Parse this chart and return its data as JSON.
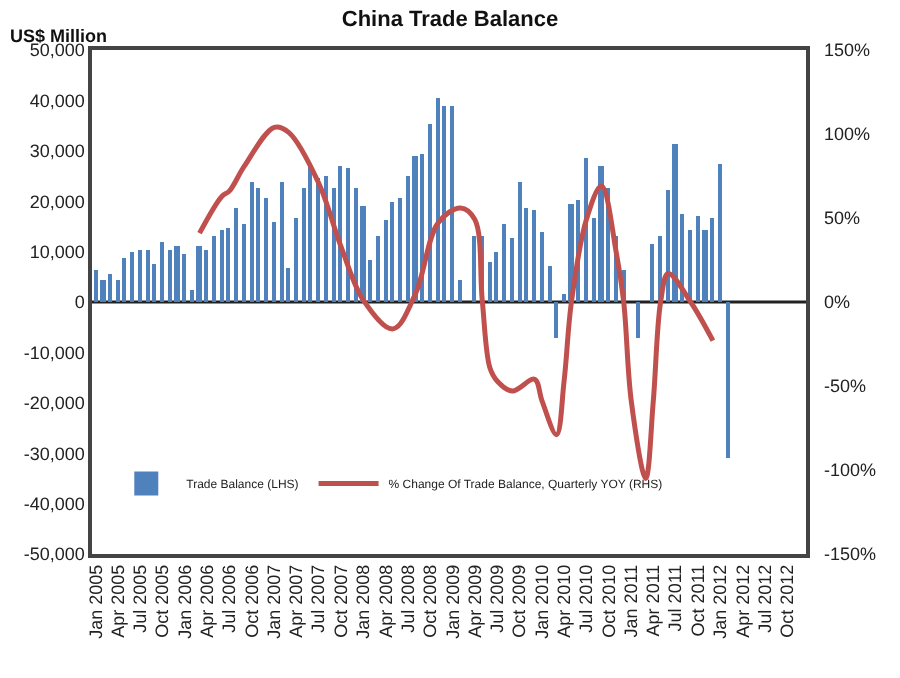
{
  "chart_data": {
    "type": "bar",
    "title": "China Trade Balance",
    "ylabel": "US$ Million",
    "xlim": [
      "2004-12-16",
      "2012-12-16"
    ],
    "xticks": [
      {
        "value": "2005-01",
        "label": "Jan 2005"
      },
      {
        "value": "2005-04",
        "label": "Apr 2005"
      },
      {
        "value": "2005-07",
        "label": "Jul 2005"
      },
      {
        "value": "2005-10",
        "label": "Oct 2005"
      },
      {
        "value": "2006-01",
        "label": "Jan 2006"
      },
      {
        "value": "2006-04",
        "label": "Apr 2006"
      },
      {
        "value": "2006-07",
        "label": "Jul 2006"
      },
      {
        "value": "2006-10",
        "label": "Oct 2006"
      },
      {
        "value": "2007-01",
        "label": "Jan 2007"
      },
      {
        "value": "2007-04",
        "label": "Apr 2007"
      },
      {
        "value": "2007-07",
        "label": "Jul 2007"
      },
      {
        "value": "2007-10",
        "label": "Oct 2007"
      },
      {
        "value": "2008-01",
        "label": "Jan 2008"
      },
      {
        "value": "2008-04",
        "label": "Apr 2008"
      },
      {
        "value": "2008-07",
        "label": "Jul 2008"
      },
      {
        "value": "2008-10",
        "label": "Oct 2008"
      },
      {
        "value": "2009-01",
        "label": "Jan 2009"
      },
      {
        "value": "2009-04",
        "label": "Apr 2009"
      },
      {
        "value": "2009-07",
        "label": "Jul 2009"
      },
      {
        "value": "2009-10",
        "label": "Oct 2009"
      },
      {
        "value": "2010-01",
        "label": "Jan 2010"
      },
      {
        "value": "2010-04",
        "label": "Apr 2010"
      },
      {
        "value": "2010-07",
        "label": "Jul 2010"
      },
      {
        "value": "2010-10",
        "label": "Oct 2010"
      },
      {
        "value": "2011-01",
        "label": "Jan 2011"
      },
      {
        "value": "2011-04",
        "label": "Apr 2011"
      },
      {
        "value": "2011-07",
        "label": "Jul 2011"
      },
      {
        "value": "2011-10",
        "label": "Oct 2011"
      },
      {
        "value": "2012-01",
        "label": "Jan 2012"
      },
      {
        "value": "2012-04",
        "label": "Apr 2012"
      },
      {
        "value": "2012-07",
        "label": "Jul 2012"
      },
      {
        "value": "2012-10",
        "label": "Oct 2012"
      }
    ],
    "ylim": [
      -50000,
      50000
    ],
    "yticks": [
      {
        "value": -50000,
        "label": "-50,000"
      },
      {
        "value": -40000,
        "label": "-40,000"
      },
      {
        "value": -30000,
        "label": "-30,000"
      },
      {
        "value": -20000,
        "label": "-20,000"
      },
      {
        "value": -10000,
        "label": "-10,000"
      },
      0,
      {
        "value": 10000,
        "label": "10,000"
      },
      {
        "value": 20000,
        "label": "20,000"
      },
      {
        "value": 30000,
        "label": "30,000"
      },
      {
        "value": 40000,
        "label": "40,000"
      },
      {
        "value": 50000,
        "label": "50,000"
      }
    ],
    "y2lim": [
      -150,
      150
    ],
    "y2ticks": [
      {
        "value": -150,
        "label": "-150%"
      },
      {
        "value": -100,
        "label": "-100%"
      },
      {
        "value": -50,
        "label": "-50%"
      },
      {
        "value": 0,
        "label": "0%"
      },
      {
        "value": 50,
        "label": "50%"
      },
      {
        "value": 100,
        "label": "100%"
      },
      {
        "value": 150,
        "label": "150%"
      }
    ],
    "grid": false,
    "legend": "bottom left",
    "ref_lines": [
      {
        "axis": "y",
        "value": 0,
        "color": "#222222"
      }
    ],
    "series": [
      {
        "name": "Trade Balance (LHS)",
        "color": "#4f81bd",
        "x": [
          "2005-01",
          "2005-02",
          "2005-03",
          "2005-04",
          "2005-05",
          "2005-06",
          "2005-07",
          "2005-08",
          "2005-09",
          "2005-10",
          "2005-11",
          "2005-12",
          "2006-01",
          "2006-02",
          "2006-03",
          "2006-04",
          "2006-05",
          "2006-06",
          "2006-07",
          "2006-08",
          "2006-09",
          "2006-10",
          "2006-11",
          "2006-12",
          "2007-01",
          "2007-02",
          "2007-03",
          "2007-04",
          "2007-05",
          "2007-06",
          "2007-07",
          "2007-08",
          "2007-09",
          "2007-10",
          "2007-11",
          "2007-12",
          "2008-01",
          "2008-02",
          "2008-03",
          "2008-04",
          "2008-05",
          "2008-06",
          "2008-07",
          "2008-08",
          "2008-09",
          "2008-10",
          "2008-11",
          "2008-12",
          "2009-01",
          "2009-02",
          "2009-03",
          "2009-04",
          "2009-05",
          "2009-06",
          "2009-07",
          "2009-08",
          "2009-09",
          "2009-10",
          "2009-11",
          "2009-12",
          "2010-01",
          "2010-02",
          "2010-03",
          "2010-04",
          "2010-05",
          "2010-06",
          "2010-07",
          "2010-08",
          "2010-09",
          "2010-10",
          "2010-11",
          "2010-12",
          "2011-01",
          "2011-02",
          "2011-03",
          "2011-04",
          "2011-05",
          "2011-06",
          "2011-07",
          "2011-08",
          "2011-09",
          "2011-10",
          "2011-11",
          "2011-12",
          "2012-01",
          "2012-02"
        ],
        "values": [
          6500,
          4300,
          5600,
          4300,
          8900,
          9900,
          10400,
          10400,
          7500,
          12100,
          10400,
          11100,
          9500,
          2400,
          11100,
          10400,
          13100,
          14300,
          14500,
          18800,
          15300,
          23900,
          22700,
          20700,
          16000,
          23900,
          6700,
          16700,
          22500,
          26900,
          24500,
          25100,
          22700,
          26900,
          26400,
          22700,
          19200,
          8300,
          13100,
          16300,
          20000,
          20500,
          25100,
          28900,
          29200,
          35200,
          40300,
          38900,
          38900,
          4500,
          null,
          13100,
          13100,
          7900,
          10100,
          15600,
          12800,
          23900,
          18800,
          18300,
          13900,
          7200,
          -7300,
          1500,
          19500,
          20300,
          28500,
          16700,
          26900,
          22700,
          13100,
          6500,
          null,
          -7300,
          null,
          11500,
          13100,
          22100,
          31500,
          17600,
          14300,
          16900,
          14300,
          16700,
          27200,
          -31000
        ]
      },
      {
        "name": "% Change Of Trade Balance, Quarterly YOY (RHS)",
        "type": "line",
        "axis": "y2",
        "color": "#c0504d",
        "x": [
          "2006-03",
          "2006-06",
          "2006-07",
          "2006-09",
          "2007-01",
          "2007-03",
          "2007-07",
          "2007-10",
          "2008-01",
          "2008-05",
          "2008-08",
          "2008-11",
          "2009-02",
          "2009-04",
          "2009-05",
          "2009-06",
          "2009-07",
          "2009-09",
          "2009-12",
          "2010-01",
          "2010-03",
          "2010-04",
          "2010-05",
          "2010-07",
          "2010-09",
          "2010-11",
          "2010-12",
          "2011-01",
          "2011-03",
          "2011-04",
          "2011-05",
          "2011-06",
          "2011-09",
          "2011-12"
        ],
        "values": [
          41,
          63,
          66,
          81,
          104,
          101,
          71,
          33,
          1,
          -16,
          5,
          47,
          56,
          49,
          1,
          -39,
          -47,
          -53,
          -46,
          -59,
          -79,
          -47,
          0,
          49,
          69,
          29,
          0,
          -59,
          -105,
          -59,
          0,
          17,
          0,
          -23
        ]
      }
    ]
  }
}
